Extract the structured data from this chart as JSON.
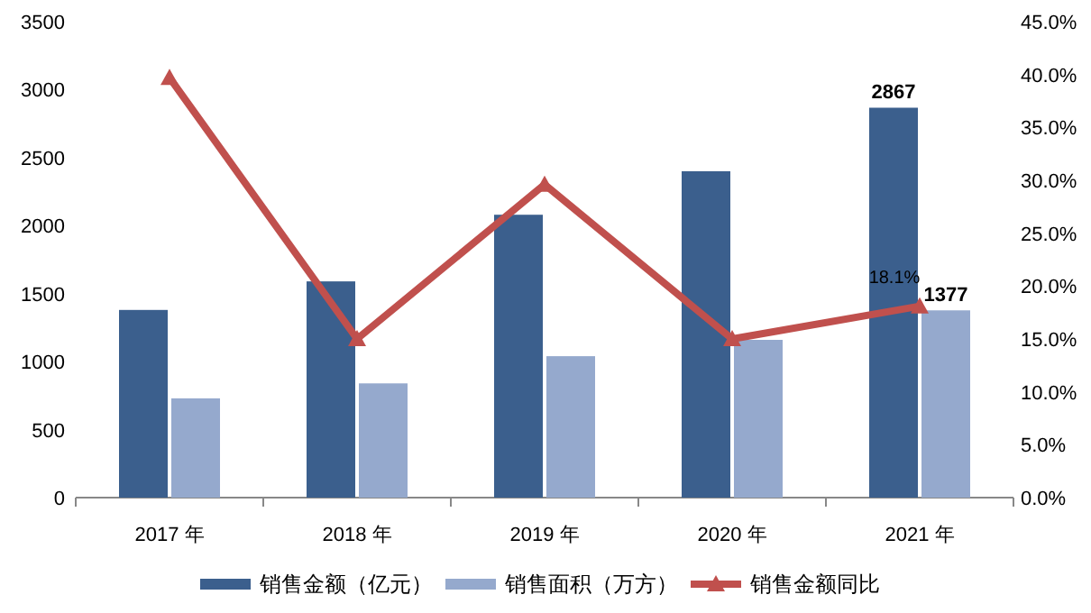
{
  "chart_data": {
    "type": "bar",
    "categories": [
      "2017 年",
      "2018 年",
      "2019 年",
      "2020 年",
      "2021 年"
    ],
    "series": [
      {
        "name": "销售金额（亿元）",
        "color": "#3b5f8d",
        "values": [
          1380,
          1590,
          2080,
          2400,
          2867
        ],
        "value_labels": [
          null,
          null,
          null,
          null,
          "2867"
        ]
      },
      {
        "name": "销售面积（万方）",
        "color": "#95a9cd",
        "values": [
          730,
          840,
          1040,
          1160,
          1377
        ],
        "value_labels": [
          null,
          null,
          null,
          null,
          "1377"
        ]
      },
      {
        "name": "销售金额同比",
        "type": "line",
        "axis": "y2",
        "color": "#c0504d",
        "marker": "triangle",
        "values": [
          39.7,
          15.0,
          29.6,
          15.0,
          18.1
        ],
        "value_labels": [
          null,
          null,
          null,
          null,
          "18.1%"
        ]
      }
    ],
    "ylim": [
      0,
      3500
    ],
    "yticks": [
      0,
      500,
      1000,
      1500,
      2000,
      2500,
      3000,
      3500
    ],
    "y2lim": [
      0,
      45
    ],
    "y2ticks": [
      {
        "value": 0,
        "label": "0.0%"
      },
      {
        "value": 5,
        "label": "5.0%"
      },
      {
        "value": 10,
        "label": "10.0%"
      },
      {
        "value": 15,
        "label": "15.0%"
      },
      {
        "value": 20,
        "label": "20.0%"
      },
      {
        "value": 25,
        "label": "25.0%"
      },
      {
        "value": 30,
        "label": "30.0%"
      },
      {
        "value": 35,
        "label": "35.0%"
      },
      {
        "value": 40,
        "label": "40.0%"
      },
      {
        "value": 45,
        "label": "45.0%"
      }
    ],
    "legend": "bottom",
    "grid": false
  }
}
